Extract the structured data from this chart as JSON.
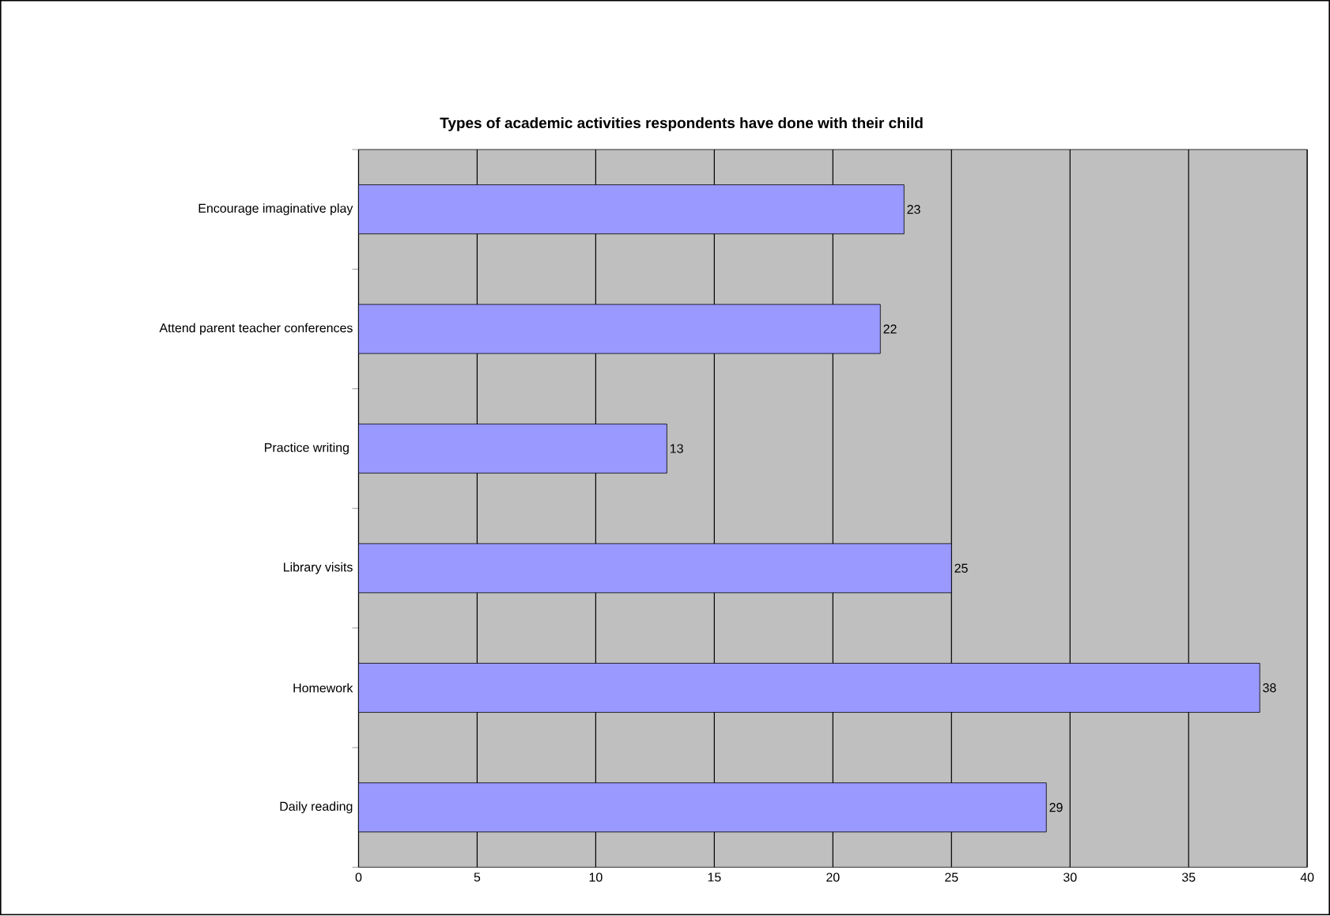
{
  "chart_data": {
    "type": "bar",
    "orientation": "horizontal",
    "title": "Types of academic activities respondents have done with their child",
    "categories": [
      "Encourage imaginative play",
      "Attend parent teacher conferences",
      "Practice writing ",
      "Library visits",
      "Homework",
      "Daily reading"
    ],
    "values": [
      23,
      22,
      13,
      25,
      38,
      29
    ],
    "color": "#9999ff",
    "xlim": [
      0,
      40
    ],
    "xticks": [
      0,
      5,
      10,
      15,
      20,
      25,
      30,
      35,
      40
    ],
    "grid": "x",
    "data_labels": true
  }
}
